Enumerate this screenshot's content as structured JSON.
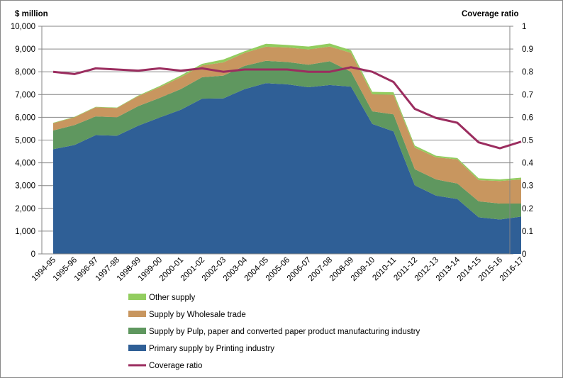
{
  "chart_data": {
    "type": "area",
    "stacked": true,
    "categories": [
      "1994-95",
      "1995-96",
      "1996-97",
      "1997-98",
      "1998-99",
      "1999-00",
      "2000-01",
      "2001-02",
      "2002-03",
      "2003-04",
      "2004-05",
      "2005-06",
      "2006-07",
      "2007-08",
      "2008-09",
      "2009-10",
      "2010-11",
      "2011-12",
      "2012-13",
      "2013-14",
      "2014-15",
      "2015-16",
      "2016-17"
    ],
    "ylabel": "$ million",
    "y2label": "Coverage ratio",
    "ylim": [
      0,
      10000
    ],
    "y2lim": [
      0,
      1
    ],
    "yticks": [
      "0",
      "1,000",
      "2,000",
      "3,000",
      "4,000",
      "5,000",
      "6,000",
      "7,000",
      "8,000",
      "9,000",
      "10,000"
    ],
    "y2ticks": [
      "0",
      "0.1",
      "0.2",
      "0.3",
      "0.4",
      "0.5",
      "0.6",
      "0.7",
      "0.8",
      "0.9",
      "1"
    ],
    "grid": true,
    "legend": "bottom",
    "series": [
      {
        "name": "Primary supply by Printing industry",
        "type": "area",
        "color": "#2F5F96",
        "values": [
          4600,
          4780,
          5220,
          5190,
          5630,
          5990,
          6330,
          6820,
          6830,
          7240,
          7500,
          7450,
          7320,
          7420,
          7350,
          5710,
          5380,
          3010,
          2560,
          2410,
          1610,
          1510,
          1640
        ]
      },
      {
        "name": "Supply by Pulp, paper and converted paper product manufacturing industry",
        "type": "area",
        "color": "#5F975F",
        "values": [
          820,
          880,
          820,
          810,
          860,
          860,
          910,
          940,
          1000,
          1020,
          980,
          980,
          990,
          1040,
          650,
          550,
          750,
          710,
          710,
          680,
          700,
          700,
          570
        ]
      },
      {
        "name": "Supply by Wholesale trade",
        "type": "area",
        "color": "#C8965F",
        "values": [
          320,
          340,
          400,
          410,
          440,
          470,
          520,
          520,
          580,
          570,
          620,
          640,
          670,
          650,
          830,
          750,
          860,
          950,
          970,
          1060,
          930,
          990,
          1060
        ]
      },
      {
        "name": "Other supply",
        "type": "area",
        "color": "#92CD5F",
        "values": [
          20,
          20,
          20,
          20,
          30,
          50,
          80,
          70,
          130,
          70,
          130,
          110,
          130,
          130,
          120,
          110,
          110,
          90,
          70,
          60,
          80,
          70,
          80
        ]
      },
      {
        "name": "Coverage ratio",
        "type": "line",
        "axis": "secondary",
        "color": "#9B2D5F",
        "values": [
          0.8,
          0.79,
          0.815,
          0.81,
          0.805,
          0.815,
          0.805,
          0.815,
          0.8,
          0.81,
          0.81,
          0.81,
          0.8,
          0.8,
          0.82,
          0.8,
          0.755,
          0.637,
          0.597,
          0.576,
          0.49,
          0.464,
          0.493
        ]
      }
    ],
    "legend_order": [
      3,
      2,
      1,
      0,
      4
    ]
  }
}
